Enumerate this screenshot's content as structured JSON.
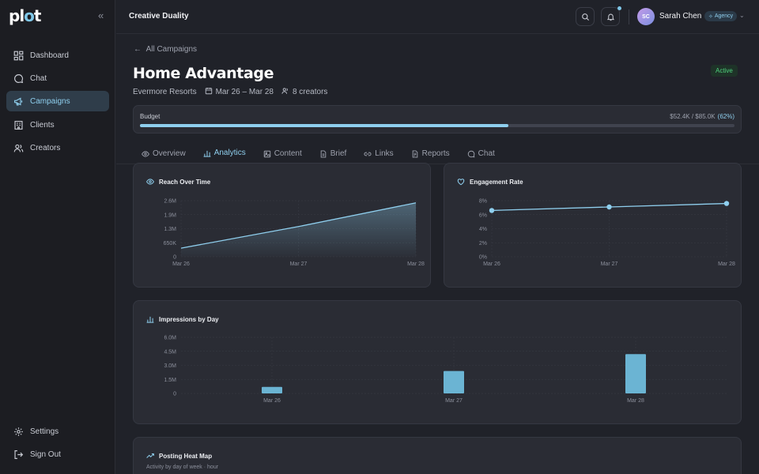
{
  "app": {
    "logo_text": "plot"
  },
  "sidebar": {
    "items": [
      {
        "label": "Dashboard",
        "icon": "grid-icon"
      },
      {
        "label": "Chat",
        "icon": "chat-icon"
      },
      {
        "label": "Campaigns",
        "icon": "megaphone-icon",
        "active": true
      },
      {
        "label": "Clients",
        "icon": "building-icon"
      },
      {
        "label": "Creators",
        "icon": "users-icon"
      }
    ],
    "bottom": [
      {
        "label": "Settings",
        "icon": "gear-icon"
      },
      {
        "label": "Sign Out",
        "icon": "sign-out-icon"
      }
    ]
  },
  "topbar": {
    "workspace": "Creative Duality",
    "user": {
      "initials": "SC",
      "name": "Sarah Chen",
      "role": "Agency"
    }
  },
  "campaign": {
    "back_label": "All Campaigns",
    "title": "Home Advantage",
    "status": "Active",
    "client": "Evermore Resorts",
    "dates": "Mar 26 – Mar 28",
    "creators": "8 creators",
    "budget": {
      "label": "Budget",
      "amount": "$52.4K / $85.0K",
      "percent_label": "(62%)",
      "fraction": 0.62
    }
  },
  "tabs": [
    {
      "label": "Overview",
      "icon": "eye-icon"
    },
    {
      "label": "Analytics",
      "icon": "bar-chart-icon",
      "active": true
    },
    {
      "label": "Content",
      "icon": "image-icon"
    },
    {
      "label": "Brief",
      "icon": "document-icon"
    },
    {
      "label": "Links",
      "icon": "link-icon"
    },
    {
      "label": "Reports",
      "icon": "report-icon"
    },
    {
      "label": "Chat",
      "icon": "chat-icon"
    }
  ],
  "colors": {
    "accent": "#8fcfee",
    "status": "#4fd27d",
    "bar": "#6bb4d3"
  },
  "chart_data": [
    {
      "type": "area",
      "title": "Reach Over Time",
      "categories": [
        "Mar 26",
        "Mar 27",
        "Mar 28"
      ],
      "values": [
        400000,
        1400000,
        2500000
      ],
      "yticks": [
        "0",
        "650K",
        "1.3M",
        "1.9M",
        "2.6M"
      ],
      "ylim": [
        0,
        2600000
      ]
    },
    {
      "type": "line",
      "title": "Engagement Rate",
      "categories": [
        "Mar 26",
        "Mar 27",
        "Mar 28"
      ],
      "values": [
        6.6,
        7.1,
        7.6
      ],
      "yticks": [
        "0%",
        "2%",
        "4%",
        "6%",
        "8%"
      ],
      "ylim": [
        0,
        8
      ]
    },
    {
      "type": "bar",
      "title": "Impressions by Day",
      "categories": [
        "Mar 26",
        "Mar 27",
        "Mar 28"
      ],
      "values": [
        700000,
        2400000,
        4200000
      ],
      "yticks": [
        "0",
        "1.5M",
        "3.0M",
        "4.5M",
        "6.0M"
      ],
      "ylim": [
        0,
        6000000
      ]
    }
  ],
  "heatmap": {
    "title": "Posting Heat Map",
    "subtitle": "Activity by day of week · hour"
  }
}
